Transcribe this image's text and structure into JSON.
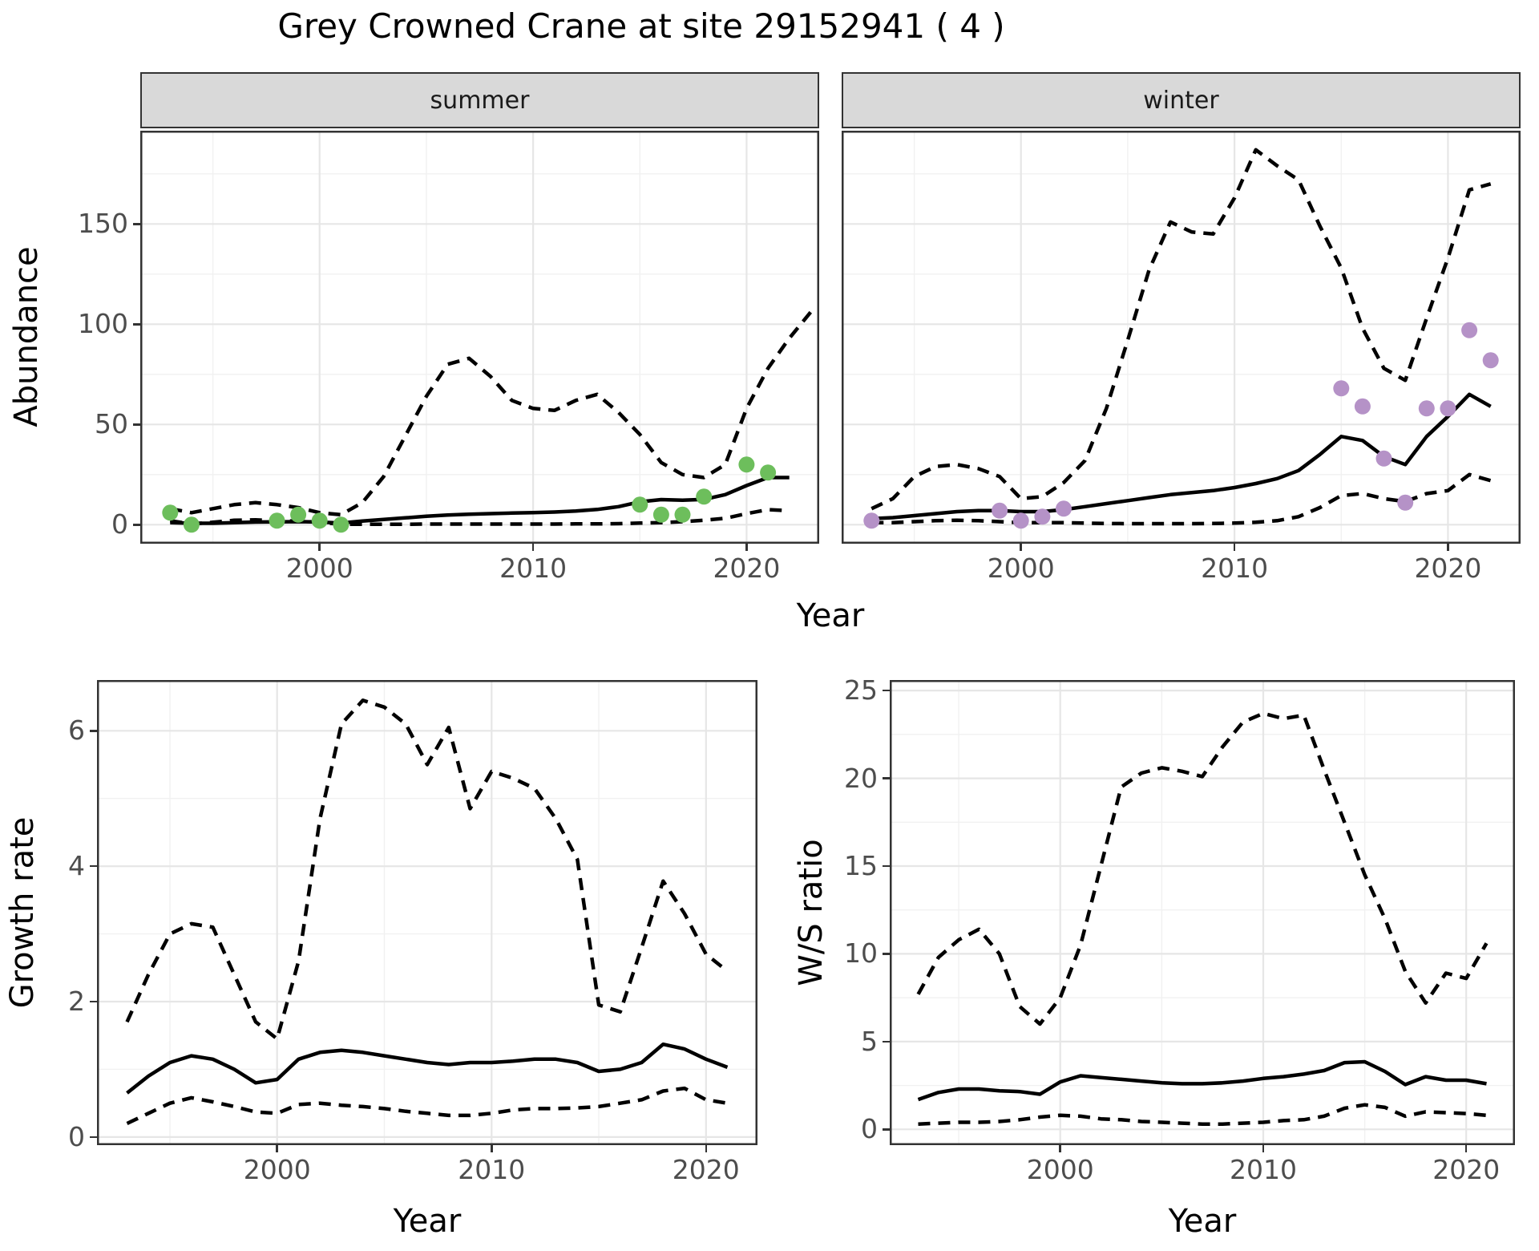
{
  "title": "Grey Crowned Crane at site 29152941 ( 4 )",
  "axes": {
    "x_title": "Year",
    "y_title_abundance": "Abundance",
    "y_title_growth": "Growth rate",
    "y_title_ws": "W/S ratio"
  },
  "colors": {
    "summer_points": "#6DBE5C",
    "winter_points": "#B592C7",
    "line": "#000000",
    "grid_major": "#E6E6E6",
    "grid_minor": "#F1F1F1",
    "panel_border": "#333333",
    "strip_bg": "#D9D9D9",
    "tick_text": "#4D4D4D"
  },
  "chart_data": [
    {
      "id": "abundance-summer",
      "type": "line",
      "facet": "summer",
      "xlabel": "Year",
      "ylabel": "Abundance",
      "xlim": [
        1991.6,
        2023.4
      ],
      "ylim": [
        -9.5,
        196.5
      ],
      "x_ticks": [
        2000,
        2010,
        2020
      ],
      "x_minor": [
        1995,
        2005,
        2015
      ],
      "y_ticks": [
        0,
        50,
        100,
        150
      ],
      "y_minor": [
        25,
        75,
        125,
        175
      ],
      "grid": true,
      "series": [
        {
          "name": "fit-line",
          "style": "solid",
          "x": [
            1993,
            1994,
            1995,
            1996,
            1997,
            1998,
            1999,
            2000,
            2001,
            2002,
            2003,
            2004,
            2005,
            2006,
            2007,
            2008,
            2009,
            2010,
            2011,
            2012,
            2013,
            2014,
            2015,
            2016,
            2017,
            2018,
            2019,
            2020,
            2021,
            2022
          ],
          "y": [
            1.0,
            0.7,
            0.7,
            1.0,
            1.3,
            1.4,
            1.5,
            1.3,
            0.8,
            1.8,
            2.6,
            3.4,
            4.2,
            4.8,
            5.2,
            5.5,
            5.8,
            6.0,
            6.3,
            6.8,
            7.6,
            9.0,
            11.4,
            12.5,
            12.2,
            12.6,
            15.0,
            19.5,
            23.5,
            23.5
          ]
        },
        {
          "name": "upper-ci",
          "style": "dashed",
          "x": [
            1993,
            1994,
            1995,
            1996,
            1997,
            1998,
            1999,
            2000,
            2001,
            2002,
            2003,
            2004,
            2005,
            2006,
            2007,
            2008,
            2009,
            2010,
            2011,
            2012,
            2013,
            2014,
            2015,
            2016,
            2017,
            2018,
            2019,
            2020,
            2021,
            2022,
            2023
          ],
          "y": [
            8,
            6,
            8,
            10,
            11,
            10,
            8.5,
            6,
            5,
            11,
            24,
            44,
            64,
            80,
            83,
            74,
            62,
            58,
            57,
            62,
            65,
            56,
            45,
            31,
            25,
            23.5,
            30,
            58,
            78,
            93,
            106
          ]
        },
        {
          "name": "lower-ci",
          "style": "dashed",
          "x": [
            1993,
            1994,
            1995,
            1996,
            1997,
            1998,
            1999,
            2000,
            2001,
            2002,
            2003,
            2004,
            2005,
            2006,
            2007,
            2008,
            2009,
            2010,
            2011,
            2012,
            2013,
            2014,
            2015,
            2016,
            2017,
            2018,
            2019,
            2020,
            2021,
            2022
          ],
          "y": [
            2,
            0.3,
            1.2,
            2.2,
            2.4,
            2.0,
            1.8,
            1.2,
            0.2,
            0.2,
            0.2,
            0.2,
            0.3,
            0.3,
            0.3,
            0.3,
            0.3,
            0.3,
            0.3,
            0.4,
            0.4,
            0.5,
            0.8,
            1.0,
            1.5,
            2.2,
            3.2,
            5.5,
            7.5,
            7.0
          ]
        }
      ],
      "points": {
        "name": "observed-counts-summer",
        "color_key": "summer_points",
        "x": [
          1993,
          1994,
          1998,
          1999,
          2000,
          2001,
          2015,
          2016,
          2017,
          2018,
          2020,
          2021
        ],
        "y": [
          6,
          0,
          2,
          5,
          2,
          0,
          10,
          5,
          5,
          14,
          30,
          26
        ]
      }
    },
    {
      "id": "abundance-winter",
      "type": "line",
      "facet": "winter",
      "xlabel": "Year",
      "ylabel": "Abundance",
      "xlim": [
        1991.6,
        2023.4
      ],
      "ylim": [
        -9.5,
        196.5
      ],
      "x_ticks": [
        2000,
        2010,
        2020
      ],
      "x_minor": [
        1995,
        2005,
        2015
      ],
      "y_ticks": [
        0,
        50,
        100,
        150
      ],
      "y_minor": [
        25,
        75,
        125,
        175
      ],
      "grid": true,
      "series": [
        {
          "name": "fit-line",
          "style": "solid",
          "x": [
            1993,
            1994,
            1995,
            1996,
            1997,
            1998,
            1999,
            2000,
            2001,
            2002,
            2003,
            2004,
            2005,
            2006,
            2007,
            2008,
            2009,
            2010,
            2011,
            2012,
            2013,
            2014,
            2015,
            2016,
            2017,
            2018,
            2019,
            2020,
            2021,
            2022
          ],
          "y": [
            3,
            3.5,
            4.5,
            5.5,
            6.5,
            7,
            7,
            6.5,
            6.5,
            7.5,
            9,
            10.5,
            12,
            13.5,
            15,
            16,
            17,
            18.5,
            20.5,
            23,
            27,
            35,
            44,
            42,
            34,
            30,
            44,
            54,
            65,
            59
          ]
        },
        {
          "name": "upper-ci",
          "style": "dashed",
          "x": [
            1993,
            1994,
            1995,
            1996,
            1997,
            1998,
            1999,
            2000,
            2001,
            2002,
            2003,
            2004,
            2005,
            2006,
            2007,
            2008,
            2009,
            2010,
            2011,
            2012,
            2013,
            2014,
            2015,
            2016,
            2017,
            2018,
            2019,
            2020,
            2021,
            2022
          ],
          "y": [
            8,
            13,
            24,
            29,
            30,
            28,
            24,
            13,
            14,
            21,
            32,
            58,
            92,
            127,
            151,
            146,
            145,
            163,
            187,
            179,
            172,
            149,
            128,
            98,
            78,
            72,
            103,
            133,
            167,
            170
          ]
        },
        {
          "name": "lower-ci",
          "style": "dashed",
          "x": [
            1993,
            1994,
            1995,
            1996,
            1997,
            1998,
            1999,
            2000,
            2001,
            2002,
            2003,
            2004,
            2005,
            2006,
            2007,
            2008,
            2009,
            2010,
            2011,
            2012,
            2013,
            2014,
            2015,
            2016,
            2017,
            2018,
            2019,
            2020,
            2021,
            2022
          ],
          "y": [
            1,
            1,
            1.5,
            2,
            2.2,
            2,
            1.5,
            1,
            1,
            1,
            0.8,
            0.6,
            0.5,
            0.5,
            0.5,
            0.5,
            0.6,
            0.8,
            1.2,
            2,
            4,
            8.5,
            14.5,
            15.5,
            13,
            11.5,
            15.5,
            17,
            25,
            22
          ]
        }
      ],
      "points": {
        "name": "observed-counts-winter",
        "color_key": "winter_points",
        "x": [
          1993,
          1999,
          2000,
          2001,
          2002,
          2015,
          2016,
          2017,
          2018,
          2019,
          2020,
          2021,
          2022
        ],
        "y": [
          2,
          7,
          2,
          4,
          8,
          68,
          59,
          33,
          11,
          58,
          58,
          97,
          82
        ]
      }
    },
    {
      "id": "growth-rate",
      "type": "line",
      "facet": "",
      "xlabel": "Year",
      "ylabel": "Growth rate",
      "xlim": [
        1991.6,
        2022.4
      ],
      "ylim": [
        -0.12,
        6.75
      ],
      "x_ticks": [
        2000,
        2010,
        2020
      ],
      "x_minor": [
        1995,
        2005,
        2015
      ],
      "y_ticks": [
        0,
        2,
        4,
        6
      ],
      "y_minor": [
        1,
        3,
        5
      ],
      "grid": true,
      "series": [
        {
          "name": "fit-line",
          "style": "solid",
          "x": [
            1993,
            1994,
            1995,
            1996,
            1997,
            1998,
            1999,
            2000,
            2001,
            2002,
            2003,
            2004,
            2005,
            2006,
            2007,
            2008,
            2009,
            2010,
            2011,
            2012,
            2013,
            2014,
            2015,
            2016,
            2017,
            2018,
            2019,
            2020,
            2021
          ],
          "y": [
            0.65,
            0.9,
            1.1,
            1.2,
            1.15,
            1.0,
            0.8,
            0.85,
            1.15,
            1.25,
            1.28,
            1.25,
            1.2,
            1.15,
            1.1,
            1.07,
            1.1,
            1.1,
            1.12,
            1.15,
            1.15,
            1.1,
            0.97,
            1.0,
            1.1,
            1.37,
            1.3,
            1.15,
            1.03
          ]
        },
        {
          "name": "upper-ci",
          "style": "dashed",
          "x": [
            1993,
            1994,
            1995,
            1996,
            1997,
            1998,
            1999,
            2000,
            2001,
            2002,
            2003,
            2004,
            2005,
            2006,
            2007,
            2008,
            2009,
            2010,
            2011,
            2012,
            2013,
            2014,
            2015,
            2016,
            2017,
            2018,
            2019,
            2020,
            2021
          ],
          "y": [
            1.7,
            2.4,
            3.0,
            3.15,
            3.1,
            2.4,
            1.7,
            1.45,
            2.6,
            4.7,
            6.1,
            6.45,
            6.35,
            6.1,
            5.5,
            6.05,
            4.85,
            5.4,
            5.3,
            5.15,
            4.7,
            4.1,
            1.95,
            1.85,
            2.8,
            3.78,
            3.3,
            2.7,
            2.45
          ]
        },
        {
          "name": "lower-ci",
          "style": "dashed",
          "x": [
            1993,
            1994,
            1995,
            1996,
            1997,
            1998,
            1999,
            2000,
            2001,
            2002,
            2003,
            2004,
            2005,
            2006,
            2007,
            2008,
            2009,
            2010,
            2011,
            2012,
            2013,
            2014,
            2015,
            2016,
            2017,
            2018,
            2019,
            2020,
            2021
          ],
          "y": [
            0.2,
            0.35,
            0.5,
            0.58,
            0.52,
            0.45,
            0.37,
            0.35,
            0.48,
            0.5,
            0.47,
            0.45,
            0.42,
            0.38,
            0.35,
            0.32,
            0.32,
            0.35,
            0.4,
            0.42,
            0.42,
            0.43,
            0.45,
            0.5,
            0.55,
            0.68,
            0.72,
            0.55,
            0.5
          ]
        }
      ],
      "points": null
    },
    {
      "id": "ws-ratio",
      "type": "line",
      "facet": "",
      "xlabel": "Year",
      "ylabel": "W/S ratio",
      "xlim": [
        1991.6,
        2022.4
      ],
      "ylim": [
        -0.9,
        25.6
      ],
      "x_ticks": [
        2000,
        2010,
        2020
      ],
      "x_minor": [
        1995,
        2005,
        2015
      ],
      "y_ticks": [
        0,
        5,
        10,
        15,
        20,
        25
      ],
      "y_minor": [
        2.5,
        7.5,
        12.5,
        17.5,
        22.5
      ],
      "grid": true,
      "series": [
        {
          "name": "fit-line",
          "style": "solid",
          "x": [
            1993,
            1994,
            1995,
            1996,
            1997,
            1998,
            1999,
            2000,
            2001,
            2002,
            2003,
            2004,
            2005,
            2006,
            2007,
            2008,
            2009,
            2010,
            2011,
            2012,
            2013,
            2014,
            2015,
            2016,
            2017,
            2018,
            2019,
            2020,
            2021
          ],
          "y": [
            1.7,
            2.1,
            2.3,
            2.3,
            2.2,
            2.15,
            2.0,
            2.7,
            3.05,
            2.95,
            2.85,
            2.75,
            2.65,
            2.6,
            2.6,
            2.65,
            2.75,
            2.9,
            3.0,
            3.15,
            3.35,
            3.8,
            3.85,
            3.3,
            2.55,
            3.0,
            2.8,
            2.8,
            2.6
          ]
        },
        {
          "name": "upper-ci",
          "style": "dashed",
          "x": [
            1993,
            1994,
            1995,
            1996,
            1997,
            1998,
            1999,
            2000,
            2001,
            2002,
            2003,
            2004,
            2005,
            2006,
            2007,
            2008,
            2009,
            2010,
            2011,
            2012,
            2013,
            2014,
            2015,
            2016,
            2017,
            2018,
            2019,
            2020,
            2021
          ],
          "y": [
            7.7,
            9.8,
            10.8,
            11.4,
            10.0,
            7.0,
            6.0,
            7.5,
            10.5,
            15.0,
            19.5,
            20.3,
            20.6,
            20.4,
            20.1,
            21.8,
            23.2,
            23.7,
            23.4,
            23.6,
            20.5,
            17.5,
            14.5,
            12.0,
            9.0,
            7.2,
            8.9,
            8.6,
            10.6
          ]
        },
        {
          "name": "lower-ci",
          "style": "dashed",
          "x": [
            1993,
            1994,
            1995,
            1996,
            1997,
            1998,
            1999,
            2000,
            2001,
            2002,
            2003,
            2004,
            2005,
            2006,
            2007,
            2008,
            2009,
            2010,
            2011,
            2012,
            2013,
            2014,
            2015,
            2016,
            2017,
            2018,
            2019,
            2020,
            2021
          ],
          "y": [
            0.3,
            0.35,
            0.4,
            0.4,
            0.45,
            0.55,
            0.7,
            0.8,
            0.75,
            0.6,
            0.55,
            0.45,
            0.4,
            0.35,
            0.3,
            0.3,
            0.35,
            0.4,
            0.5,
            0.55,
            0.75,
            1.2,
            1.4,
            1.25,
            0.75,
            1.0,
            0.95,
            0.9,
            0.8
          ]
        }
      ],
      "points": null
    }
  ]
}
